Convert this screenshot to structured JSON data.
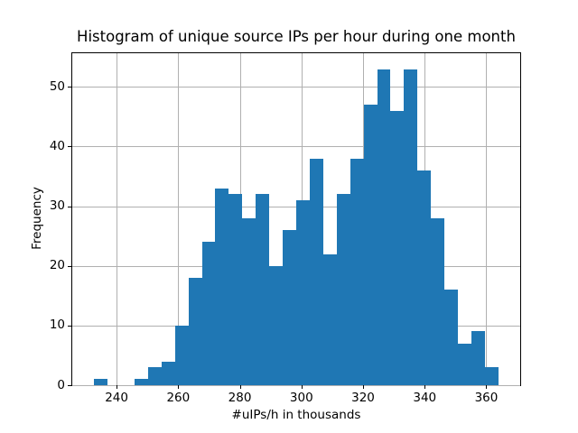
{
  "chart_data": {
    "type": "bar",
    "title": "Histogram of unique source IPs per hour during one month",
    "xlabel": "#uIPs/h in thousands",
    "ylabel": "Frequency",
    "bin_start": 232.68,
    "bin_width": 4.375,
    "counts": [
      1,
      0,
      0,
      1,
      3,
      4,
      10,
      18,
      24,
      33,
      32,
      28,
      32,
      20,
      26,
      31,
      38,
      22,
      32,
      38,
      47,
      53,
      46,
      53,
      36,
      28,
      16,
      7,
      9,
      3
    ],
    "xticks": [
      240,
      260,
      280,
      300,
      320,
      340,
      360
    ],
    "yticks": [
      0,
      10,
      20,
      30,
      40,
      50
    ],
    "xlim": [
      225.6,
      371.0
    ],
    "ylim": [
      0,
      55.65
    ],
    "grid": true,
    "legend": "none",
    "bar_color": "#1f77b4",
    "grid_color": "#b0b0b0",
    "spine_color": "#000000",
    "background_color": "#ffffff"
  }
}
